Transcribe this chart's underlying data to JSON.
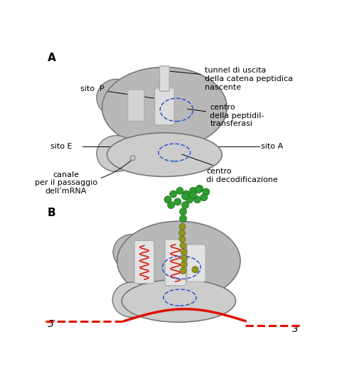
{
  "bg_color": "#ffffff",
  "rib_gray": "#b8b8b8",
  "rib_gray_light": "#cccccc",
  "rib_gray_dark": "#909090",
  "rib_edge": "#787878",
  "tunnel_fill": "#dcdcdc",
  "tunnel_edge": "#aaaaaa",
  "dashed_blue": "#3355cc",
  "mrna_red": "#dd1100",
  "green_bead": "#2e9e2e",
  "green_bead_edge": "#1a6a1a",
  "olive_bead": "#909820",
  "olive_bead_edge": "#666010",
  "label_color": "#000000",
  "label_tunnel": "tunnel di uscita\ndella catena peptidica\nnascente",
  "label_centro_pep": "centro\ndella peptidil-\ntransferasi",
  "label_P": "sito  P",
  "label_E": "sito E",
  "label_A": "sito A",
  "label_canale": "canale\nper il passaggio\ndell’mRNA",
  "label_centro_dec": "centro\ndi decodificazione",
  "label_5prime": "5′",
  "label_3prime": "3′",
  "label_panel_A": "A",
  "label_panel_B": "B",
  "fs_label": 8.0,
  "fs_panel": 11
}
